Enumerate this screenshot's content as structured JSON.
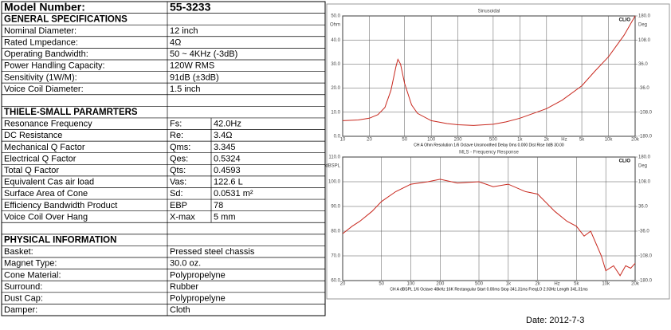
{
  "model": {
    "label": "Model Number:",
    "value": "55-3233"
  },
  "general": {
    "title": "GENERAL SPECIFICATIONS",
    "rows": [
      [
        "Nominal Diameter:",
        "12 inch"
      ],
      [
        "Rated Lmpedance:",
        "4Ω"
      ],
      [
        "Operating Bandwidth:",
        "50 ~ 4KHz (-3dB)"
      ],
      [
        "Power Handling Capacity:",
        "120W RMS"
      ],
      [
        "Sensitivity (1W/M):",
        "91dB (±3dB)"
      ],
      [
        "Voice Coil Diameter:",
        "1.5 inch"
      ]
    ]
  },
  "thiele": {
    "title": "THIELE-SMALL PARAMRTERS",
    "rows": [
      [
        "Resonance Frequency",
        "Fs:",
        "42.0Hz"
      ],
      [
        "DC Resistance",
        "Re:",
        "3.4Ω"
      ],
      [
        "Mechanical Q Factor",
        "Qms:",
        "3.345"
      ],
      [
        "Electrical Q Factor",
        "Qes:",
        "0.5324"
      ],
      [
        "Total Q Factor",
        "Qts:",
        "0.4593"
      ],
      [
        "Equivalent Cas air load",
        "Vas:",
        "122.6 L"
      ],
      [
        "Surface Area of Cone",
        "Sd:",
        "0.0531 m²"
      ],
      [
        "Efficiency Bandwidth Product",
        "EBP",
        "78"
      ],
      [
        "Voice Coil Over Hang",
        "X-max",
        "5 mm"
      ]
    ]
  },
  "physical": {
    "title": "PHYSICAL INFORMATION",
    "rows": [
      [
        "Basket:",
        "Pressed steel chassis"
      ],
      [
        "Magnet Type:",
        "30.0 oz."
      ],
      [
        "Cone Material:",
        "Polypropelyne"
      ],
      [
        "Surround:",
        "Rubber"
      ],
      [
        "Dust Cap:",
        "Polypropelyne"
      ],
      [
        "Damper:",
        "Cloth"
      ]
    ]
  },
  "charts": [
    {
      "type": "line",
      "title": "Sinusoidal",
      "brand": "CLIO",
      "y_label": "Ohm",
      "y2_label": "Deg",
      "x_unit": "Hz",
      "log_x": true,
      "grid": true,
      "color": "#c8281e",
      "xlim": [
        10,
        20000
      ],
      "ylim": [
        0,
        50
      ],
      "y2lim": [
        -180,
        180
      ],
      "xticks": [
        10,
        20,
        50,
        100,
        200,
        500,
        {
          "value": 1000,
          "label": "1k"
        },
        {
          "value": 2000,
          "label": "2k"
        },
        {
          "value": 5000,
          "label": "5k"
        },
        {
          "value": 10000,
          "label": "10k"
        },
        {
          "value": 20000,
          "label": "20k"
        }
      ],
      "yticks": [
        {
          "value": 0,
          "label": "0.0"
        },
        {
          "value": 10,
          "label": "10.0"
        },
        {
          "value": 20,
          "label": "20.0"
        },
        {
          "value": 30,
          "label": "30.0"
        },
        {
          "value": 40,
          "label": "40.0"
        },
        {
          "value": 50,
          "label": "50.0"
        }
      ],
      "y2ticks": [
        {
          "value": -180,
          "label": "-180.0"
        },
        {
          "value": -108,
          "label": "-108.0"
        },
        {
          "value": -36,
          "label": "-36.0"
        },
        {
          "value": 36,
          "label": "36.0"
        },
        {
          "value": 108,
          "label": "108.0"
        },
        {
          "value": 180,
          "label": "180.0"
        }
      ],
      "footer": "CH A  Ohm  Resolution 1/6 Octave  Unsmoothed  Delay 0ms 0.000  Dist Rise 0dB 30.00",
      "x": [
        10,
        15,
        20,
        25,
        30,
        35,
        40,
        42,
        45,
        50,
        60,
        70,
        100,
        150,
        200,
        300,
        500,
        700,
        1000,
        2000,
        3000,
        5000,
        7000,
        10000,
        15000,
        20000
      ],
      "values": [
        6.5,
        6.8,
        7.5,
        9,
        12,
        19,
        29,
        32,
        30,
        22,
        13,
        9.5,
        6.5,
        5.3,
        4.8,
        4.5,
        5,
        6,
        7.5,
        11.5,
        15,
        21,
        27,
        33,
        42,
        50
      ]
    },
    {
      "type": "line",
      "title": "MLS - Frequency Response",
      "brand": "CLIO",
      "y_label": "dBSPL",
      "y2_label": "Deg",
      "x_unit": "Hz",
      "log_x": true,
      "grid": true,
      "color": "#c8281e",
      "xlim": [
        20,
        20000
      ],
      "ylim": [
        60,
        110
      ],
      "y2lim": [
        -180,
        180
      ],
      "xticks": [
        20,
        50,
        100,
        200,
        500,
        {
          "value": 1000,
          "label": "1k"
        },
        {
          "value": 2000,
          "label": "2k"
        },
        {
          "value": 5000,
          "label": "5k"
        },
        {
          "value": 10000,
          "label": "10k"
        },
        {
          "value": 20000,
          "label": "20k"
        }
      ],
      "yticks": [
        {
          "value": 60,
          "label": "60.0"
        },
        {
          "value": 70,
          "label": "70.0"
        },
        {
          "value": 80,
          "label": "80.0"
        },
        {
          "value": 90,
          "label": "90.0"
        },
        {
          "value": 100,
          "label": "100.0"
        },
        {
          "value": 110,
          "label": "110.0"
        }
      ],
      "y2ticks": [
        {
          "value": -180,
          "label": "-180.0"
        },
        {
          "value": -108,
          "label": "-108.0"
        },
        {
          "value": -36,
          "label": "-36.0"
        },
        {
          "value": 36,
          "label": "36.0"
        },
        {
          "value": 108,
          "label": "108.0"
        },
        {
          "value": 180,
          "label": "180.0"
        }
      ],
      "footer": "CH A  dBSPL  1/6 Octave  48kHz  16K  Rectangular  Start 0.00ms  Stop 341.31ms  FreqLO 2.93Hz  Length 341.31ms",
      "x": [
        20,
        25,
        30,
        40,
        50,
        70,
        100,
        150,
        200,
        300,
        500,
        700,
        1000,
        1500,
        2000,
        3000,
        4000,
        5000,
        6000,
        7000,
        9000,
        10000,
        12000,
        14000,
        16000,
        18000,
        20000
      ],
      "values": [
        79,
        82,
        84,
        88,
        92,
        96,
        99,
        100,
        101,
        99.5,
        100,
        98,
        99,
        96,
        95,
        88,
        84,
        82,
        78,
        80,
        70,
        64,
        66,
        62,
        66,
        65,
        67
      ]
    }
  ],
  "date": "Date: 2012-7-3"
}
